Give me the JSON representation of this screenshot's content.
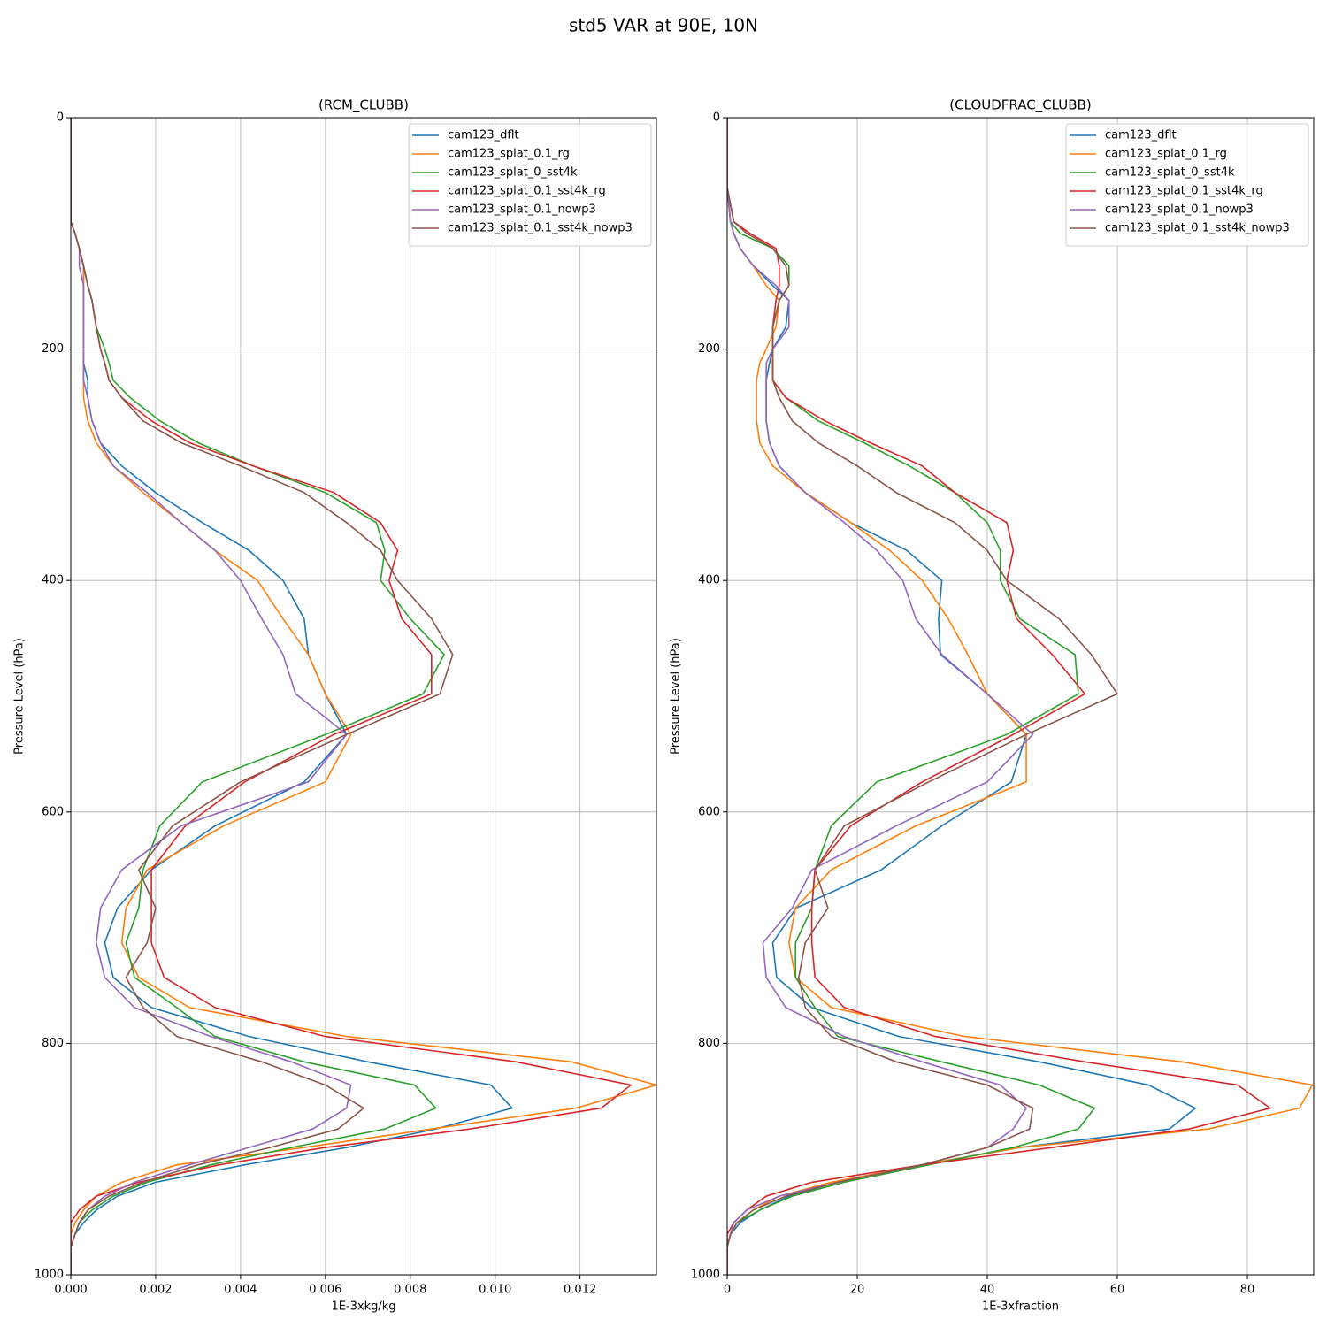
{
  "title": "std5 VAR at 90E, 10N",
  "chart_data": [
    {
      "type": "line",
      "title": "(RCM_CLUBB)",
      "xlabel": "1E-3xkg/kg",
      "ylabel": "Pressure Level (hPa)",
      "grid": true,
      "legend": "upper right",
      "xlim": [
        0,
        0.0138
      ],
      "xticks": [
        {
          "value": 0,
          "label": "0.000"
        },
        {
          "value": 0.002,
          "label": "0.002"
        },
        {
          "value": 0.004,
          "label": "0.004"
        },
        {
          "value": 0.006,
          "label": "0.006"
        },
        {
          "value": 0.008,
          "label": "0.008"
        },
        {
          "value": 0.01,
          "label": "0.010"
        },
        {
          "value": 0.012,
          "label": "0.012"
        }
      ],
      "ylim": [
        1000,
        0
      ],
      "yticks": [
        0,
        200,
        400,
        600,
        800,
        1000
      ],
      "y": [
        0,
        60,
        90,
        100,
        113,
        128,
        145,
        158,
        181,
        200,
        212,
        227,
        242,
        262,
        281,
        301,
        324,
        350,
        374,
        400,
        433,
        464,
        498,
        533,
        574,
        612,
        650,
        683,
        713,
        743,
        769,
        794,
        816,
        836,
        856,
        874,
        890,
        905,
        920,
        932,
        944,
        955,
        965,
        976,
        1000
      ],
      "series": [
        {
          "name": "cam123_dflt",
          "color": "#1f77b4",
          "values": [
            0,
            0,
            0,
            0.0001,
            0.0002,
            0.0003,
            0.0003,
            0.0003,
            0.0003,
            0.0003,
            0.0003,
            0.0004,
            0.0004,
            0.0005,
            0.0007,
            0.0012,
            0.002,
            0.0031,
            0.0042,
            0.005,
            0.0055,
            0.0056,
            0.006,
            0.0065,
            0.0055,
            0.0034,
            0.0019,
            0.0011,
            0.0008,
            0.001,
            0.0019,
            0.0042,
            0.007,
            0.0099,
            0.0104,
            0.0086,
            0.0065,
            0.0041,
            0.002,
            0.0011,
            0.0006,
            0.0003,
            0.0001,
            0,
            0
          ]
        },
        {
          "name": "cam123_splat_0.1_rg",
          "color": "#ff7f0e",
          "values": [
            0,
            0,
            0,
            0.0001,
            0.0002,
            0.0003,
            0.0003,
            0.0003,
            0.0003,
            0.0003,
            0.0003,
            0.0003,
            0.0003,
            0.0004,
            0.0006,
            0.001,
            0.0017,
            0.0026,
            0.0034,
            0.0044,
            0.005,
            0.0056,
            0.006,
            0.0066,
            0.006,
            0.0036,
            0.0018,
            0.0013,
            0.0012,
            0.0016,
            0.0028,
            0.0065,
            0.0118,
            0.0138,
            0.0119,
            0.0085,
            0.0055,
            0.0025,
            0.0012,
            0.0006,
            0.0003,
            0.0001,
            0,
            0,
            0
          ]
        },
        {
          "name": "cam123_splat_0_sst4k",
          "color": "#2ca02c",
          "values": [
            0,
            0,
            0,
            0.0001,
            0.0002,
            0.0003,
            0.0004,
            0.0005,
            0.0006,
            0.0008,
            0.0009,
            0.001,
            0.0014,
            0.0021,
            0.003,
            0.0043,
            0.006,
            0.0072,
            0.0074,
            0.0073,
            0.008,
            0.0088,
            0.0083,
            0.006,
            0.0031,
            0.0021,
            0.0017,
            0.0016,
            0.0013,
            0.0015,
            0.0025,
            0.0034,
            0.0055,
            0.0081,
            0.0086,
            0.0074,
            0.0052,
            0.0033,
            0.0018,
            0.001,
            0.0005,
            0.0002,
            0.0001,
            0,
            0
          ]
        },
        {
          "name": "cam123_splat_0.1_sst4k_rg",
          "color": "#d62728",
          "values": [
            0,
            0,
            0,
            0.0001,
            0.0002,
            0.0003,
            0.0004,
            0.0005,
            0.0006,
            0.0007,
            0.0008,
            0.0009,
            0.0012,
            0.0019,
            0.0028,
            0.0043,
            0.0062,
            0.0073,
            0.0077,
            0.0075,
            0.0078,
            0.0085,
            0.0085,
            0.0062,
            0.0041,
            0.0027,
            0.0019,
            0.0019,
            0.0019,
            0.0022,
            0.0034,
            0.006,
            0.0105,
            0.0132,
            0.0125,
            0.0094,
            0.006,
            0.0035,
            0.0016,
            0.0006,
            0.0002,
            0,
            0,
            0,
            0
          ]
        },
        {
          "name": "cam123_splat_0.1_nowp3",
          "color": "#9467bd",
          "values": [
            0,
            0,
            0,
            0.0001,
            0.0002,
            0.0002,
            0.0003,
            0.0003,
            0.0003,
            0.0003,
            0.0003,
            0.0003,
            0.0004,
            0.0005,
            0.0007,
            0.001,
            0.0018,
            0.0026,
            0.0034,
            0.004,
            0.0045,
            0.005,
            0.0053,
            0.0065,
            0.0056,
            0.0026,
            0.0012,
            0.0007,
            0.0006,
            0.0008,
            0.0015,
            0.0033,
            0.0052,
            0.0066,
            0.0065,
            0.0057,
            0.0042,
            0.0028,
            0.0015,
            0.0008,
            0.0004,
            0.0002,
            0.0001,
            0,
            0
          ]
        },
        {
          "name": "cam123_splat_0.1_sst4k_nowp3",
          "color": "#8c564b",
          "values": [
            0,
            0,
            0,
            0.0001,
            0.0002,
            0.0003,
            0.0004,
            0.0005,
            0.0006,
            0.0007,
            0.0008,
            0.0009,
            0.0012,
            0.0017,
            0.0026,
            0.004,
            0.0055,
            0.0065,
            0.0073,
            0.0077,
            0.0085,
            0.009,
            0.0087,
            0.0065,
            0.004,
            0.0024,
            0.0016,
            0.002,
            0.0018,
            0.0013,
            0.0017,
            0.0025,
            0.0045,
            0.006,
            0.0069,
            0.0063,
            0.0047,
            0.003,
            0.0017,
            0.0009,
            0.0004,
            0.0002,
            0.0001,
            0,
            0
          ]
        }
      ]
    },
    {
      "type": "line",
      "title": "(CLOUDFRAC_CLUBB)",
      "xlabel": "1E-3xfraction",
      "ylabel": "Pressure Level (hPa)",
      "grid": true,
      "legend": "upper right",
      "xlim": [
        0,
        90.2
      ],
      "xticks": [
        0,
        20,
        40,
        60,
        80
      ],
      "ylim": [
        1000,
        0
      ],
      "yticks": [
        0,
        200,
        400,
        600,
        800,
        1000
      ],
      "y": [
        0,
        60,
        90,
        100,
        113,
        128,
        145,
        158,
        181,
        200,
        212,
        227,
        242,
        262,
        281,
        301,
        324,
        350,
        374,
        400,
        433,
        464,
        498,
        533,
        574,
        612,
        650,
        683,
        713,
        743,
        769,
        794,
        816,
        836,
        856,
        874,
        890,
        905,
        920,
        932,
        944,
        955,
        965,
        976,
        1000
      ],
      "series": [
        {
          "name": "cam123_dflt",
          "color": "#1f77b4",
          "values": [
            0,
            0,
            0.5,
            1,
            2,
            4,
            7,
            9.5,
            9,
            7,
            6.5,
            6,
            6,
            6,
            6.5,
            8,
            12,
            19,
            27.6,
            33,
            32.5,
            32.8,
            40,
            46,
            43.7,
            33,
            23.7,
            10.6,
            7,
            7.6,
            13,
            26.4,
            48,
            64.8,
            72,
            68,
            45,
            30,
            17,
            9.5,
            5,
            2,
            0.5,
            0,
            0
          ]
        },
        {
          "name": "cam123_splat_0.1_rg",
          "color": "#ff7f0e",
          "values": [
            0,
            0,
            0.5,
            1,
            2,
            4,
            6,
            8,
            7.5,
            6,
            5,
            4.5,
            4.5,
            4.5,
            5,
            7,
            12,
            19,
            25,
            30,
            34,
            37,
            40,
            46,
            46,
            29,
            16,
            10.5,
            9.5,
            10.5,
            16,
            36.5,
            70,
            90,
            88,
            74,
            45,
            30,
            16,
            8,
            4,
            1.5,
            0.5,
            0,
            0
          ]
        },
        {
          "name": "cam123_splat_0_sst4k",
          "color": "#2ca02c",
          "values": [
            0,
            0,
            0.5,
            2,
            7,
            9.5,
            9.5,
            8,
            7,
            7,
            7,
            7,
            9,
            14,
            21,
            28,
            35,
            40,
            42,
            42,
            45,
            53.5,
            54,
            43,
            23,
            16,
            13.5,
            13,
            10.5,
            10.5,
            13.5,
            17,
            33,
            48,
            56.5,
            54,
            44,
            31,
            18,
            10,
            5,
            1.5,
            0.5,
            0,
            0
          ]
        },
        {
          "name": "cam123_splat_0.1_sst4k_rg",
          "color": "#d62728",
          "values": [
            0,
            0,
            1,
            3.5,
            7.5,
            8,
            8,
            7.5,
            7,
            7,
            7,
            7,
            9,
            15,
            22,
            30,
            35,
            43,
            44,
            43,
            44.5,
            50,
            55,
            44,
            30,
            19,
            13.5,
            13,
            13,
            13.5,
            18,
            32,
            55,
            78.5,
            83.5,
            71,
            50,
            30,
            13,
            6,
            3,
            1,
            0,
            0,
            0
          ]
        },
        {
          "name": "cam123_splat_0.1_nowp3",
          "color": "#9467bd",
          "values": [
            0,
            0,
            0.5,
            1,
            2,
            4,
            7.5,
            9.5,
            9.5,
            7,
            6,
            6,
            6,
            6,
            6.5,
            8,
            12,
            18,
            23,
            27,
            29,
            33,
            40,
            47,
            40,
            26,
            13,
            10,
            5.5,
            6,
            9,
            18,
            30,
            42,
            46,
            44,
            40,
            30,
            17,
            8,
            3,
            1,
            0.5,
            0,
            0
          ]
        },
        {
          "name": "cam123_splat_0.1_sst4k_nowp3",
          "color": "#8c564b",
          "values": [
            0,
            0,
            1,
            3,
            7,
            9,
            9.5,
            8,
            7,
            7,
            7,
            7,
            8,
            10,
            14,
            20,
            26,
            35,
            40,
            43,
            51,
            56,
            60,
            46,
            31,
            18,
            13.5,
            15.5,
            12,
            11,
            12,
            16,
            26,
            40,
            47,
            46.5,
            40,
            30,
            17,
            9,
            4,
            1.5,
            0.5,
            0,
            0
          ]
        }
      ]
    }
  ]
}
